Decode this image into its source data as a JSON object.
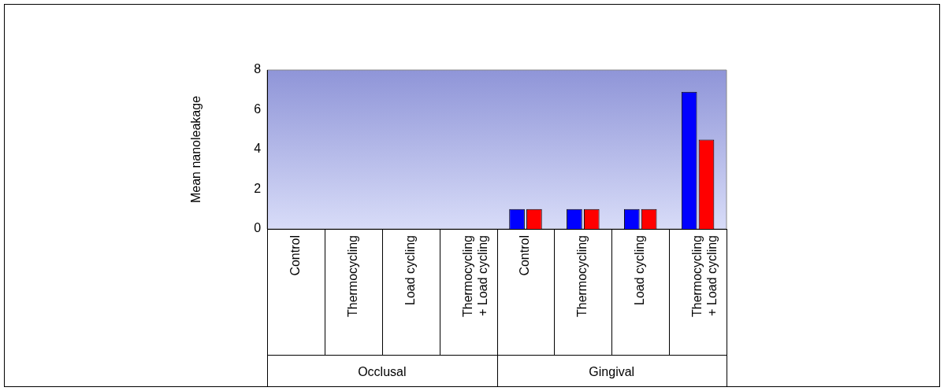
{
  "chart_data": {
    "type": "bar",
    "ylabel": "Mean nanoleakage",
    "categories": [
      "Control",
      "Thermocycling",
      "Load cycling",
      "Thermocycling + Load cycling",
      "Control",
      "Thermocycling",
      "Load cycling",
      "Thermocycling + Load cycling"
    ],
    "series": [
      {
        "color": "#0000ff",
        "values": [
          0,
          0,
          0,
          0,
          1,
          1,
          1,
          6.9
        ]
      },
      {
        "color": "#ff0000",
        "values": [
          0,
          0,
          0,
          0,
          1,
          1,
          1,
          4.5
        ]
      }
    ],
    "ylim": [
      0,
      8
    ],
    "yticks": [
      0,
      2,
      4,
      6,
      8
    ],
    "grid": false,
    "legend": false,
    "annotations": [
      "Occlusal",
      "Gingival"
    ]
  }
}
